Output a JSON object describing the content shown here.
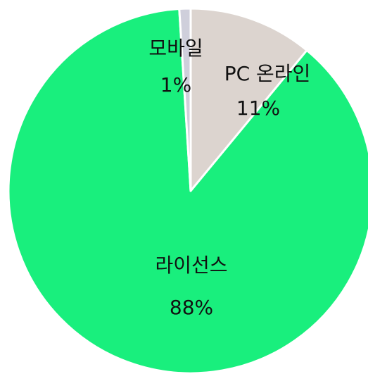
{
  "chart_data": {
    "type": "pie",
    "categories": [
      "PC 온라인",
      "라이선스",
      "모바일"
    ],
    "values": [
      11,
      88,
      1
    ],
    "value_labels": [
      "11%",
      "88%",
      "1%"
    ],
    "colors": [
      "#dcd4cf",
      "#19ef7d",
      "#cfcfdb"
    ]
  }
}
